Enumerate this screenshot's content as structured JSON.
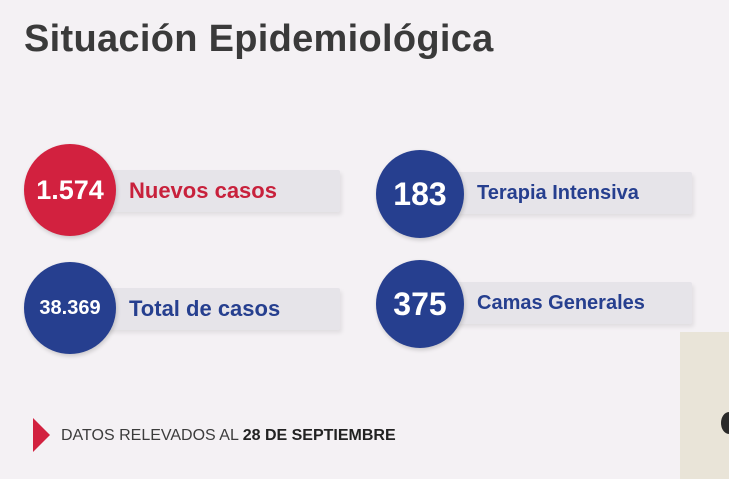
{
  "title": "Situación Epidemiológica",
  "stats": {
    "nuevos": {
      "value": "1.574",
      "label": "Nuevos casos",
      "color": "#d2213f",
      "label_color": "#c8213c"
    },
    "total": {
      "value": "38.369",
      "label": "Total de casos",
      "color": "#263f8f",
      "label_color": "#263f8f"
    },
    "terapia": {
      "value": "183",
      "label": "Terapia Intensiva",
      "color": "#263f8f",
      "label_color": "#263f8f"
    },
    "camas": {
      "value": "375",
      "label": "Camas Generales",
      "color": "#263f8f",
      "label_color": "#263f8f"
    }
  },
  "footer": {
    "prefix": "DATOS RELEVADOS AL ",
    "date": "28 DE SEPTIEMBRE",
    "accent": "#d2213f"
  }
}
